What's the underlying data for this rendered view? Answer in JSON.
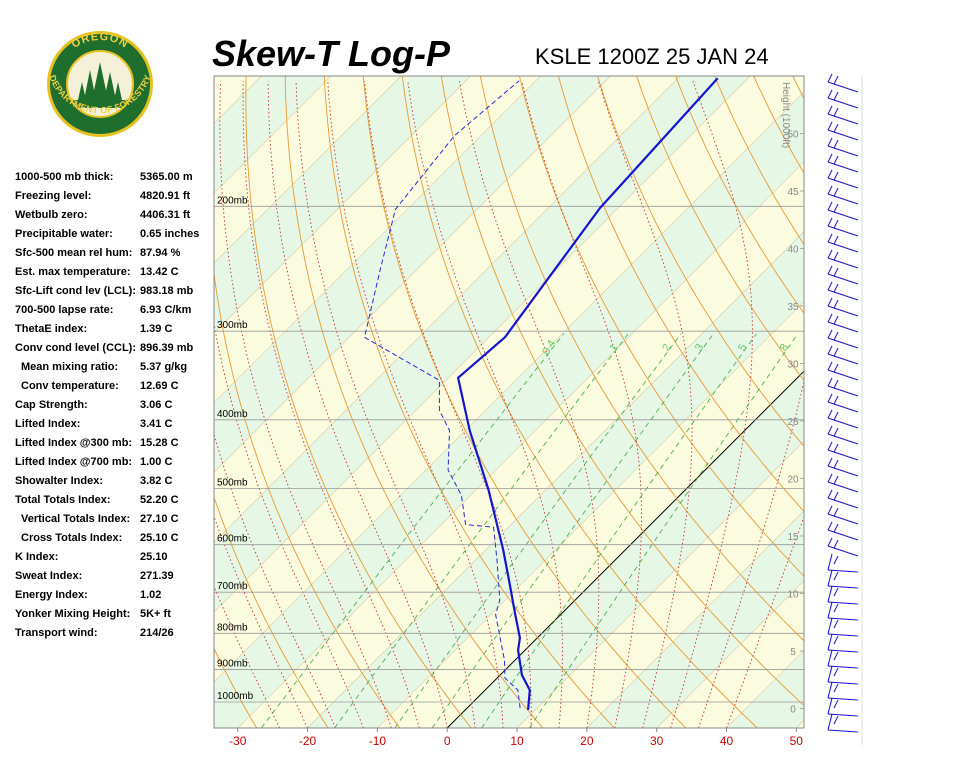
{
  "logo": {
    "top": "OREGON",
    "bottom": "DEPARTMENT OF FORESTRY"
  },
  "title": "Skew-T Log-P",
  "station": "KSLE 1200Z 25 JAN 24",
  "stats": [
    {
      "label": "1000-500 mb thick:",
      "value": "5365.00 m"
    },
    {
      "label": "Freezing level:",
      "value": "4820.91 ft"
    },
    {
      "label": "Wetbulb zero:",
      "value": "4406.31 ft"
    },
    {
      "label": "Precipitable water:",
      "value": "0.65 inches"
    },
    {
      "label": "Sfc-500 mean rel hum:",
      "value": "87.94 %"
    },
    {
      "label": "Est. max temperature:",
      "value": "13.42 C"
    },
    {
      "label": "Sfc-Lift cond lev (LCL):",
      "value": "983.18 mb"
    },
    {
      "label": "700-500 lapse rate:",
      "value": "6.93 C/km"
    },
    {
      "label": "ThetaE index:",
      "value": "1.39 C"
    },
    {
      "label": "Conv cond level (CCL):",
      "value": "896.39 mb"
    },
    {
      "label": "Mean mixing ratio:",
      "value": "5.37 g/kg"
    },
    {
      "label": "Conv temperature:",
      "value": "12.69 C"
    },
    {
      "label": "Cap Strength:",
      "value": "3.06 C"
    },
    {
      "label": "Lifted Index:",
      "value": "3.41 C"
    },
    {
      "label": "Lifted Index @300 mb:",
      "value": "15.28 C"
    },
    {
      "label": "Lifted Index @700 mb:",
      "value": "1.00 C"
    },
    {
      "label": "Showalter Index:",
      "value": "3.82 C"
    },
    {
      "label": "Total Totals Index:",
      "value": "52.20 C"
    },
    {
      "label": "Vertical Totals Index:",
      "value": "27.10 C"
    },
    {
      "label": "Cross Totals Index:",
      "value": "25.10 C"
    },
    {
      "label": "K Index:",
      "value": "25.10"
    },
    {
      "label": "Sweat Index:",
      "value": "271.39"
    },
    {
      "label": "Energy Index:",
      "value": "1.02"
    },
    {
      "label": "Yonker Mixing Height:",
      "value": "5K+ ft"
    },
    {
      "label": "Transport wind:",
      "value": "214/26"
    }
  ],
  "chart_data": {
    "type": "skewt",
    "xlim": [
      -33.4,
      51.1
    ],
    "xticks": [
      -30,
      -20,
      -10,
      0,
      10,
      20,
      30,
      40,
      50
    ],
    "ylim": [
      1088,
      131
    ],
    "log_y": true,
    "yticks": [
      {
        "value": 1000,
        "label": "1000mb"
      },
      {
        "value": 900,
        "label": "900mb"
      },
      {
        "value": 800,
        "label": "800mb"
      },
      {
        "value": 700,
        "label": "700mb"
      },
      {
        "value": 600,
        "label": "600mb"
      },
      {
        "value": 500,
        "label": "500mb"
      },
      {
        "value": 400,
        "label": "400mb"
      },
      {
        "value": 300,
        "label": "300mb"
      },
      {
        "value": 200,
        "label": "200mb"
      }
    ],
    "y2_label": "Height (1000ft)",
    "y2lim": [
      -1.7,
      55
    ],
    "y2ticks": [
      0,
      5,
      10,
      15,
      20,
      25,
      30,
      35,
      40,
      45,
      50
    ],
    "mixing_ratios": [
      0.4,
      1,
      2,
      3,
      5,
      8
    ],
    "series": [
      {
        "color": "#1414d2",
        "dashed": false,
        "pressure": [
          1026,
          962,
          916,
          845,
          812,
          747,
          684,
          610,
          502,
          414,
          349,
          306,
          201,
          132
        ],
        "temperature": [
          9.0,
          6.4,
          3.1,
          -1.0,
          -2.5,
          -6.9,
          -11.5,
          -17.5,
          -28.2,
          -39.4,
          -48.6,
          -47.7,
          -52.6,
          -54.3
        ]
      },
      {
        "color": "#2828d8",
        "dashed": true,
        "pressure": [
          1020,
          962,
          925,
          873,
          753,
          718,
          631,
          567,
          562,
          511,
          471,
          414,
          388,
          352,
          306,
          246,
          202,
          159,
          133
        ],
        "temperature": [
          7.6,
          4.7,
          1.1,
          -1.5,
          -9.3,
          -10.8,
          -16.9,
          -22.1,
          -26.5,
          -31.3,
          -36.8,
          -42.3,
          -46.6,
          -50.9,
          -67.8,
          -75.2,
          -81.7,
          -83.8,
          -82.4
        ]
      }
    ]
  }
}
